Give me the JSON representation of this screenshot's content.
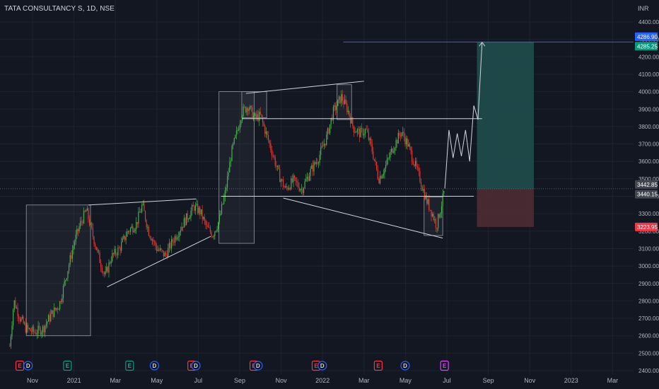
{
  "header": {
    "symbol_title": "TATA CONSULTANCY S, 1D, NSE",
    "currency": "INR"
  },
  "colors": {
    "background": "#131722",
    "grid": "#1e222d",
    "candle_up": "#26a69a",
    "candle_down": "#ef5350",
    "bar_up": "#4caf50",
    "bar_down": "#e53935",
    "drawing": "#d1d4dc",
    "target_line": "#2962ff",
    "profit_zone": "#1f4b4b",
    "loss_zone": "#4a2b33",
    "price_label_blue": "#2962ff",
    "price_label_green": "#089981",
    "price_label_red": "#f23645",
    "price_label_gray": "#434651"
  },
  "chart_data": {
    "type": "candlestick",
    "price_axis": {
      "range": [
        2400,
        4450
      ],
      "ticks": [
        2400,
        2500,
        2600,
        2700,
        2800,
        2900,
        3000,
        3100,
        3200,
        3300,
        3400,
        3500,
        3600,
        3700,
        3800,
        3900,
        4000,
        4100,
        4200,
        4300,
        4400
      ],
      "tick_labels": [
        "2400.00",
        "2500.00",
        "2600.00",
        "2700.00",
        "2800.00",
        "2900.00",
        "3000.00",
        "3100.00",
        "3200.00",
        "3300.00",
        "3400.00",
        "3500.00",
        "3600.00",
        "3700.00",
        "3800.00",
        "3900.00",
        "4000.00",
        "4100.00",
        "4200.00",
        "4300.00",
        "4400.00"
      ]
    },
    "time_axis": {
      "labels": [
        "Nov",
        "2021",
        "Mar",
        "May",
        "Jul",
        "Sep",
        "Nov",
        "2022",
        "Mar",
        "May",
        "Jul",
        "Sep",
        "Nov",
        "2023",
        "Mar"
      ],
      "month_index": [
        0,
        2,
        4,
        6,
        8,
        10,
        12,
        14,
        16,
        18,
        20,
        22,
        24,
        26,
        28
      ]
    },
    "price_labels": [
      {
        "text": "4286.90",
        "value": 4286.9,
        "style": "blue"
      },
      {
        "text": "4285.25",
        "value": 4285.25,
        "style": "green"
      },
      {
        "text": "3442.85",
        "value": 3442.85,
        "style": "gray"
      },
      {
        "text": "3440.15",
        "value": 3440.15,
        "style": "gray"
      },
      {
        "text": "3223.95",
        "value": 3223.95,
        "style": "red"
      }
    ],
    "position": {
      "entry": 3440.15,
      "target": 4285.25,
      "stop": 3223.95
    },
    "key_levels": {
      "resistance": 3845,
      "support": 3395
    },
    "events": [
      {
        "label": "E",
        "kind": "earnings-red",
        "month_index": 0.0
      },
      {
        "label": "D",
        "kind": "dividend",
        "month_index": 0.4
      },
      {
        "label": "E",
        "kind": "earnings-green",
        "month_index": 2.3
      },
      {
        "label": "E",
        "kind": "earnings-green",
        "month_index": 5.3
      },
      {
        "label": "D",
        "kind": "dividend",
        "month_index": 6.5
      },
      {
        "label": "E",
        "kind": "earnings-red",
        "month_index": 8.3
      },
      {
        "label": "D",
        "kind": "dividend",
        "month_index": 8.5
      },
      {
        "label": "E",
        "kind": "earnings-red",
        "month_index": 11.3
      },
      {
        "label": "D",
        "kind": "dividend",
        "month_index": 11.5
      },
      {
        "label": "E",
        "kind": "earnings-red",
        "month_index": 14.3
      },
      {
        "label": "D",
        "kind": "dividend",
        "month_index": 14.6
      },
      {
        "label": "E",
        "kind": "earnings-red",
        "month_index": 17.3
      },
      {
        "label": "D",
        "kind": "dividend",
        "month_index": 18.6
      },
      {
        "label": "E",
        "kind": "earnings-future",
        "month_index": 20.5
      }
    ],
    "price_path_months": [
      {
        "m": -1.1,
        "p": 2540
      },
      {
        "m": -0.9,
        "p": 2800
      },
      {
        "m": -0.6,
        "p": 2700
      },
      {
        "m": -0.3,
        "p": 2640
      },
      {
        "m": 0.1,
        "p": 2620
      },
      {
        "m": 0.5,
        "p": 2640
      },
      {
        "m": 0.9,
        "p": 2720
      },
      {
        "m": 1.3,
        "p": 2780
      },
      {
        "m": 1.7,
        "p": 2980
      },
      {
        "m": 2.0,
        "p": 3130
      },
      {
        "m": 2.3,
        "p": 3240
      },
      {
        "m": 2.6,
        "p": 3320
      },
      {
        "m": 2.9,
        "p": 3180
      },
      {
        "m": 3.2,
        "p": 3050
      },
      {
        "m": 3.5,
        "p": 2940
      },
      {
        "m": 3.8,
        "p": 3050
      },
      {
        "m": 4.2,
        "p": 3100
      },
      {
        "m": 4.6,
        "p": 3200
      },
      {
        "m": 5.0,
        "p": 3240
      },
      {
        "m": 5.3,
        "p": 3350
      },
      {
        "m": 5.6,
        "p": 3200
      },
      {
        "m": 6.0,
        "p": 3100
      },
      {
        "m": 6.4,
        "p": 3060
      },
      {
        "m": 6.8,
        "p": 3150
      },
      {
        "m": 7.3,
        "p": 3250
      },
      {
        "m": 7.8,
        "p": 3340
      },
      {
        "m": 8.1,
        "p": 3310
      },
      {
        "m": 8.4,
        "p": 3220
      },
      {
        "m": 8.7,
        "p": 3180
      },
      {
        "m": 9.0,
        "p": 3260
      },
      {
        "m": 9.3,
        "p": 3420
      },
      {
        "m": 9.6,
        "p": 3650
      },
      {
        "m": 9.9,
        "p": 3780
      },
      {
        "m": 10.1,
        "p": 3880
      },
      {
        "m": 10.4,
        "p": 3920
      },
      {
        "m": 10.7,
        "p": 3850
      },
      {
        "m": 11.0,
        "p": 3860
      },
      {
        "m": 11.3,
        "p": 3750
      },
      {
        "m": 11.6,
        "p": 3640
      },
      {
        "m": 11.9,
        "p": 3520
      },
      {
        "m": 12.2,
        "p": 3440
      },
      {
        "m": 12.6,
        "p": 3490
      },
      {
        "m": 13.0,
        "p": 3440
      },
      {
        "m": 13.4,
        "p": 3540
      },
      {
        "m": 13.8,
        "p": 3620
      },
      {
        "m": 14.2,
        "p": 3740
      },
      {
        "m": 14.5,
        "p": 3880
      },
      {
        "m": 14.9,
        "p": 3970
      },
      {
        "m": 15.2,
        "p": 3900
      },
      {
        "m": 15.5,
        "p": 3790
      },
      {
        "m": 15.8,
        "p": 3760
      },
      {
        "m": 16.1,
        "p": 3780
      },
      {
        "m": 16.4,
        "p": 3660
      },
      {
        "m": 16.7,
        "p": 3500
      },
      {
        "m": 17.0,
        "p": 3560
      },
      {
        "m": 17.4,
        "p": 3680
      },
      {
        "m": 17.8,
        "p": 3770
      },
      {
        "m": 18.1,
        "p": 3700
      },
      {
        "m": 18.4,
        "p": 3600
      },
      {
        "m": 18.7,
        "p": 3500
      },
      {
        "m": 19.0,
        "p": 3380
      },
      {
        "m": 19.3,
        "p": 3300
      },
      {
        "m": 19.5,
        "p": 3230
      },
      {
        "m": 19.7,
        "p": 3330
      },
      {
        "m": 19.9,
        "p": 3445
      }
    ],
    "projection_path": [
      {
        "m": 19.9,
        "p": 3445
      },
      {
        "m": 20.1,
        "p": 3780
      },
      {
        "m": 20.3,
        "p": 3620
      },
      {
        "m": 20.5,
        "p": 3760
      },
      {
        "m": 20.7,
        "p": 3630
      },
      {
        "m": 20.9,
        "p": 3780
      },
      {
        "m": 21.1,
        "p": 3600
      },
      {
        "m": 21.3,
        "p": 3920
      },
      {
        "m": 21.5,
        "p": 3840
      },
      {
        "m": 21.7,
        "p": 4285
      }
    ],
    "drawings": {
      "boxes": [
        {
          "m0": -0.3,
          "m1": 2.8,
          "p0": 2600,
          "p1": 3350
        },
        {
          "m0": 9.0,
          "m1": 10.7,
          "p0": 3130,
          "p1": 4000
        },
        {
          "m0": 10.1,
          "m1": 11.3,
          "p0": 3850,
          "p1": 4000
        },
        {
          "m0": 14.7,
          "m1": 15.4,
          "p0": 3840,
          "p1": 4040
        },
        {
          "m0": 18.9,
          "m1": 19.8,
          "p0": 3175,
          "p1": 3395
        }
      ],
      "lines": [
        {
          "m0": 2.7,
          "m1": 7.9,
          "p0": 3350,
          "p1": 3385
        },
        {
          "m0": 3.6,
          "m1": 8.6,
          "p0": 2880,
          "p1": 3170
        },
        {
          "m0": 10.3,
          "m1": 16.0,
          "p0": 3990,
          "p1": 4060
        },
        {
          "m0": 10.1,
          "m1": 21.7,
          "p0": 3845,
          "p1": 3845
        },
        {
          "m0": 9.1,
          "m1": 21.3,
          "p0": 3400,
          "p1": 3400
        },
        {
          "m0": 12.1,
          "m1": 19.8,
          "p0": 3390,
          "p1": 3160
        }
      ],
      "target_line": {
        "m0": 15.0,
        "m1": 29.5,
        "p": 4285
      }
    }
  }
}
